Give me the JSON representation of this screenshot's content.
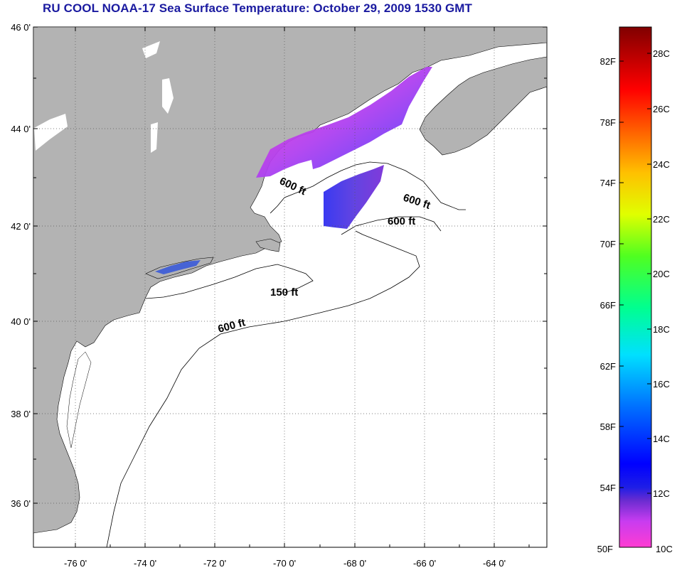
{
  "title": "RU COOL  NOAA-17  Sea Surface Temperature:  October 29, 2009 1530 GMT",
  "map": {
    "lat_range": [
      35,
      46
    ],
    "lon_range": [
      -77,
      -63
    ],
    "lat_labels": [
      "46 0'",
      "44 0'",
      "42 0'",
      "40 0'",
      "38 0'",
      "36 0'"
    ],
    "lon_labels": [
      "-76 0'",
      "-74 0'",
      "-72 0'",
      "-70 0'",
      "-68 0'",
      "-66 0'",
      "-64 0'"
    ],
    "land_color": "#b3b3b3",
    "ocean_color": "#ffffff",
    "contour_labels": [
      {
        "text": "600 ft"
      },
      {
        "text": "600 ft"
      },
      {
        "text": "600 ft"
      },
      {
        "text": "150 ft"
      },
      {
        "text": "600 ft"
      }
    ]
  },
  "colorbar": {
    "fahrenheit_labels": [
      "82F",
      "78F",
      "74F",
      "70F",
      "66F",
      "62F",
      "58F",
      "54F",
      "50F"
    ],
    "celsius_labels": [
      "28C",
      "26C",
      "24C",
      "22C",
      "20C",
      "18C",
      "16C",
      "14C",
      "12C",
      "10C"
    ],
    "range_c": [
      10,
      29
    ]
  }
}
